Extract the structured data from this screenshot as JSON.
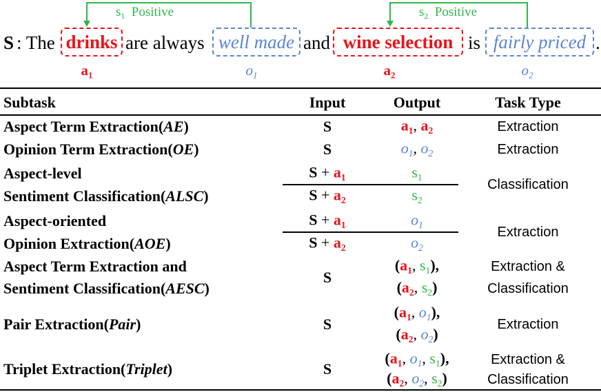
{
  "example": {
    "sentence": [
      "S",
      ": The ",
      "drinks",
      "are always",
      "well made",
      "and",
      "wine selection",
      "is",
      "fairly priced",
      "."
    ],
    "relations": [
      {
        "sym": "s",
        "sub": "1",
        "label": "Positive"
      },
      {
        "sym": "s",
        "sub": "2",
        "label": "Positive"
      }
    ],
    "markers": [
      {
        "sym": "a",
        "sub": "1"
      },
      {
        "sym": "o",
        "sub": "1"
      },
      {
        "sym": "a",
        "sub": "2"
      },
      {
        "sym": "o",
        "sub": "2"
      }
    ]
  },
  "table": {
    "header": [
      "Subtask",
      "Input",
      "Output",
      "Task Type"
    ],
    "rows": [
      {
        "subtask": [
          [
            "Aspect Term Extraction(",
            "AE",
            ")"
          ]
        ],
        "input": [
          [
            "S"
          ]
        ],
        "output": [
          [
            "a",
            "1",
            ", ",
            "a",
            "2"
          ]
        ],
        "task_type": [
          "Extraction"
        ]
      },
      {
        "subtask": [
          [
            "Opinion Term Extraction(",
            "OE",
            ")"
          ]
        ],
        "input": [
          [
            "S"
          ]
        ],
        "output": [
          [
            "o",
            "1",
            ", ",
            "o",
            "2"
          ]
        ],
        "task_type": [
          "Extraction"
        ]
      },
      {
        "subtask": [
          [
            "Aspect-level"
          ],
          [
            "Sentiment Classification(",
            "ALSC",
            ")"
          ]
        ],
        "input": [
          [
            "S",
            " + ",
            "a",
            "1"
          ],
          [
            "S",
            " + ",
            "a",
            "2"
          ]
        ],
        "output": [
          [
            "s",
            "1"
          ],
          [
            "s",
            "2"
          ]
        ],
        "task_type": [
          "Classification"
        ]
      },
      {
        "subtask": [
          [
            "Aspect-oriented"
          ],
          [
            "Opinion Extraction(",
            "AOE",
            ")"
          ]
        ],
        "input": [
          [
            "S",
            " + ",
            "a",
            "1"
          ],
          [
            "S",
            " + ",
            "a",
            "2"
          ]
        ],
        "output": [
          [
            "o",
            "1"
          ],
          [
            "o",
            "2"
          ]
        ],
        "task_type": [
          "Extraction"
        ]
      },
      {
        "subtask": [
          [
            "Aspect Term Extraction and"
          ],
          [
            "Sentiment Classification(",
            "AESC",
            ")"
          ]
        ],
        "input": [
          [
            "S"
          ]
        ],
        "output": [
          [
            "(",
            "a",
            "1",
            ", ",
            "s",
            "1",
            "),"
          ],
          [
            "(",
            "a",
            "2",
            ", ",
            "s",
            "2",
            ")"
          ]
        ],
        "task_type": [
          "Extraction &",
          "Classification"
        ]
      },
      {
        "subtask": [
          [
            "Pair Extraction(",
            "Pair",
            ")"
          ]
        ],
        "input": [
          [
            "S"
          ]
        ],
        "output": [
          [
            "(",
            "a",
            "1",
            ", ",
            "o",
            "1",
            "),"
          ],
          [
            "(",
            "a",
            "2",
            ", ",
            "o",
            "2",
            ")"
          ]
        ],
        "task_type": [
          "Extraction"
        ]
      },
      {
        "subtask": [
          [
            "Triplet Extraction(",
            "Triplet",
            ")"
          ]
        ],
        "input": [
          [
            "S"
          ]
        ],
        "output": [
          [
            "(",
            "a",
            "1",
            ", ",
            "o",
            "1",
            ", ",
            "s",
            "1",
            "),"
          ],
          [
            "(",
            "a",
            "2",
            ", ",
            "o",
            "2",
            ", ",
            "s",
            "2",
            ")"
          ]
        ],
        "task_type": [
          "Extraction &",
          "Classification"
        ]
      }
    ]
  }
}
